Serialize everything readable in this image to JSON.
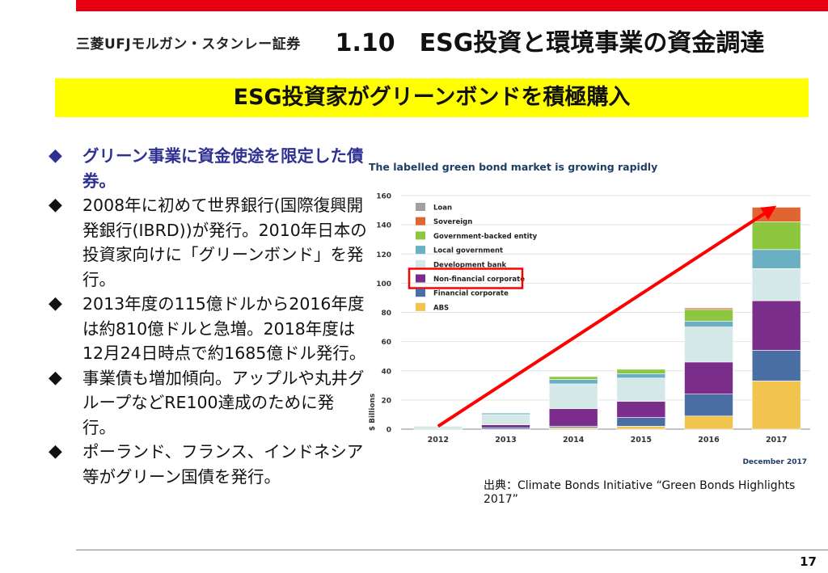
{
  "header": {
    "logo_text": "三菱UFJモルガン・スタンレー証券",
    "title": "1.10　ESG投資と環境事業の資金調達",
    "banner": "ESG投資家がグリーンボンドを積極購入"
  },
  "bullets": [
    "グリーン事業に資金使途を限定した債券。",
    "2008年に初めて世界銀行(国際復興開発銀行(IBRD))が発行。2010年日本の投資家向けに「グリーンボンド」を発行。",
    "2013年度の115億ドルから2016年度は約810億ドルと急増。2018年度は12月24日時点で約1685億ドル発行。",
    "事業債も増加傾向。アップルや丸井グループなどRE100達成のために発行。",
    "ポーランド、フランス、インドネシア等がグリーン国債を発行。"
  ],
  "bullet_marker": "◆",
  "chart_data": {
    "type": "bar",
    "stacked": true,
    "title": "The labelled green bond market is growing rapidly",
    "ylabel": "$ Billions",
    "xlabel": "",
    "footnote": "December 2017",
    "ylim": [
      0,
      160
    ],
    "yticks": [
      "0",
      "20",
      "40",
      "60",
      "80",
      "100",
      "120",
      "140",
      "160"
    ],
    "categories": [
      "2012",
      "2013",
      "2014",
      "2015",
      "2016",
      "2017"
    ],
    "series": [
      {
        "name": "ABS",
        "color": "#f2c44e",
        "values": [
          0,
          0,
          1,
          2,
          9,
          33
        ]
      },
      {
        "name": "Financial corporate",
        "color": "#4a6fa5",
        "values": [
          0,
          1,
          1,
          6,
          15,
          21
        ]
      },
      {
        "name": "Non-financial corporate",
        "color": "#7b2d8b",
        "values": [
          0,
          2,
          12,
          11,
          22,
          34
        ]
      },
      {
        "name": "Development bank",
        "color": "#d4e8e8",
        "values": [
          2,
          7,
          17,
          16,
          24,
          22
        ]
      },
      {
        "name": "Local government",
        "color": "#6ab0c2",
        "values": [
          0,
          1,
          3,
          3,
          4,
          13
        ]
      },
      {
        "name": "Government-backed entity",
        "color": "#8dc63f",
        "values": [
          0,
          0,
          2,
          3,
          8,
          19
        ]
      },
      {
        "name": "Sovereign",
        "color": "#e06530",
        "values": [
          0,
          0,
          0,
          0,
          1,
          10
        ]
      },
      {
        "name": "Loan",
        "color": "#a0a0a0",
        "values": [
          0,
          0,
          0,
          0,
          0,
          0
        ]
      }
    ],
    "legend_order": [
      "Loan",
      "Sovereign",
      "Government-backed entity",
      "Local government",
      "Development bank",
      "Non-financial corporate",
      "Financial corporate",
      "ABS"
    ],
    "highlighted_legend": "Non-financial corporate",
    "annotations": {
      "arrow_color": "#ff0000",
      "highlight_color": "#ff0000",
      "arrow_from": {
        "x": "2012",
        "y": 2
      },
      "arrow_to": {
        "x": "2017",
        "y": 153
      }
    }
  },
  "source": "出典：Climate Bonds Initiative “Green Bonds Highlights 2017”",
  "page_number": "17"
}
